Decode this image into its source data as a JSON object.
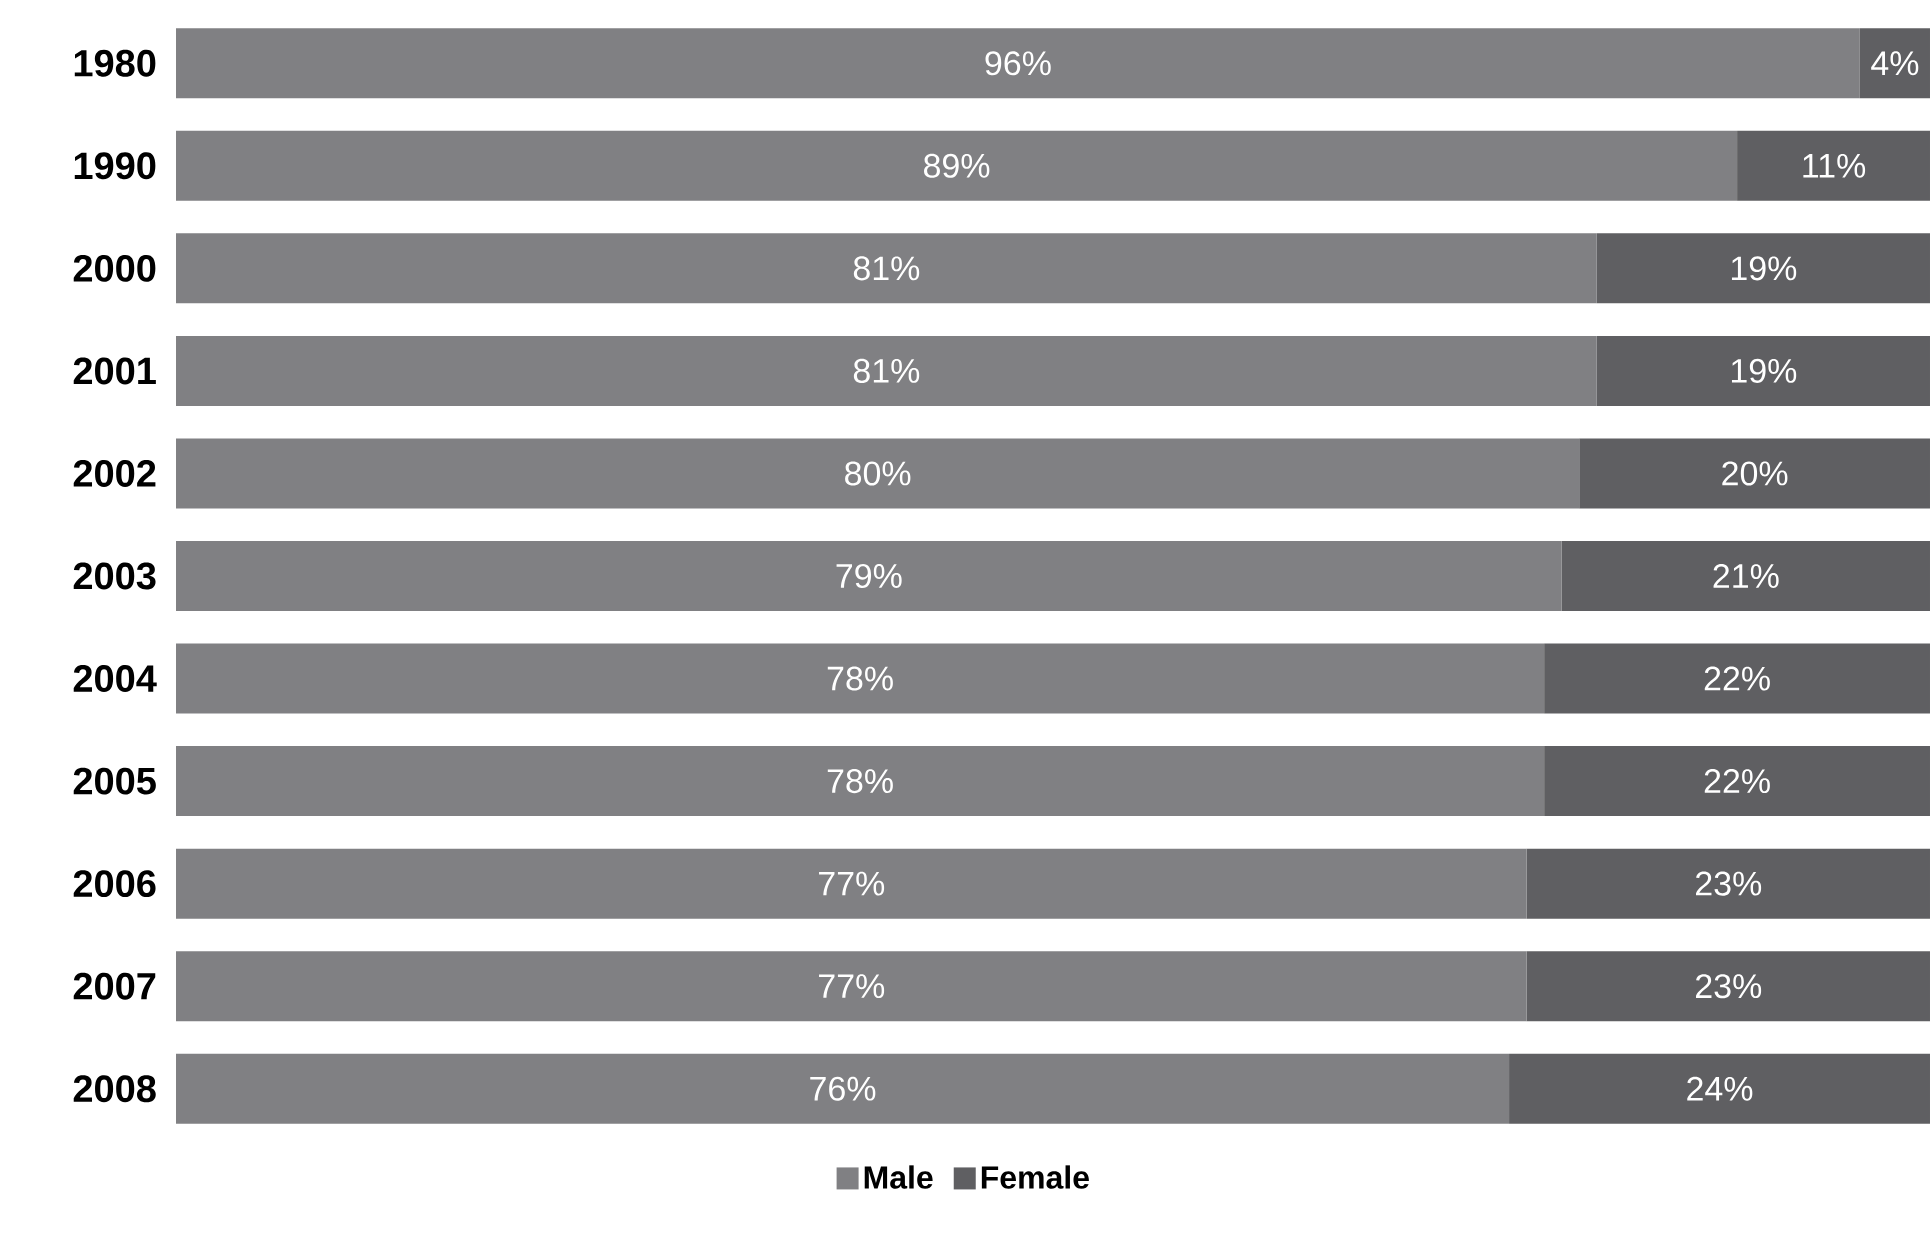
{
  "chart_data": {
    "type": "bar",
    "orientation": "horizontal",
    "stacked": true,
    "legend": "bottom",
    "categories": [
      "1980",
      "1990",
      "2000",
      "2001",
      "2002",
      "2003",
      "2004",
      "2005",
      "2006",
      "2007",
      "2008"
    ],
    "series": [
      {
        "name": "Male",
        "color": "#808083",
        "values": [
          96,
          89,
          81,
          81,
          80,
          79,
          78,
          78,
          77,
          77,
          76
        ],
        "value_labels": [
          "96%",
          "89%",
          "81%",
          "81%",
          "80%",
          "79%",
          "78%",
          "78%",
          "77%",
          "77%",
          "76%"
        ]
      },
      {
        "name": "Female",
        "color": "#5f5f62",
        "values": [
          4,
          11,
          19,
          19,
          20,
          21,
          22,
          22,
          23,
          23,
          24
        ],
        "value_labels": [
          "4%",
          "11%",
          "19%",
          "19%",
          "20%",
          "21%",
          "22%",
          "22%",
          "23%",
          "23%",
          "24%"
        ]
      }
    ]
  }
}
